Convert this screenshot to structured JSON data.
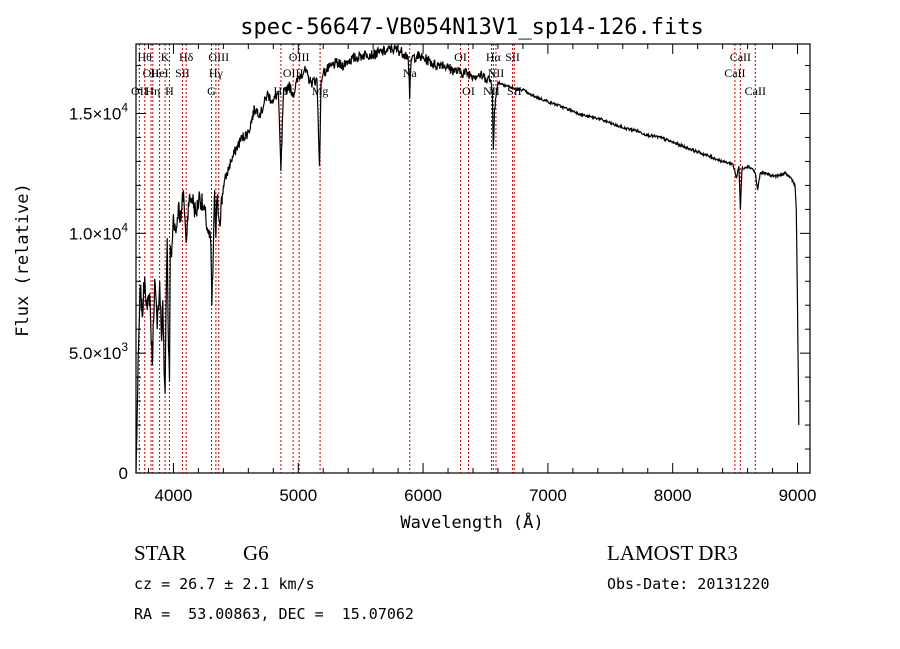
{
  "chart_data": {
    "type": "line",
    "title": "spec-56647-VB054N13V1_sp14-126.fits",
    "xlabel": "Wavelength (Å)",
    "ylabel": "Flux (relative)",
    "xlim": [
      3700,
      9100
    ],
    "ylim": [
      0,
      17900
    ],
    "x_ticks": [
      4000,
      5000,
      6000,
      7000,
      8000,
      9000
    ],
    "x_tick_labels": [
      "4000",
      "5000",
      "6000",
      "7000",
      "8000",
      "9000"
    ],
    "y_ticks": [
      0,
      5000,
      10000,
      15000
    ],
    "y_tick_labels": [
      {
        "mant": "0",
        "exp": ""
      },
      {
        "mant": "5.0×10",
        "exp": "3"
      },
      {
        "mant": "1.0×10",
        "exp": "4"
      },
      {
        "mant": "1.5×10",
        "exp": "4"
      }
    ],
    "series": [
      {
        "name": "spectrum",
        "x": [
          3700,
          3710,
          3720,
          3735,
          3750,
          3770,
          3790,
          3810,
          3830,
          3850,
          3870,
          3890,
          3905,
          3915,
          3925,
          3933,
          3940,
          3950,
          3960,
          3968,
          3975,
          3985,
          4000,
          4020,
          4040,
          4060,
          4080,
          4101,
          4120,
          4150,
          4180,
          4210,
          4240,
          4260,
          4280,
          4300,
          4308,
          4315,
          4330,
          4340,
          4350,
          4370,
          4400,
          4430,
          4460,
          4500,
          4550,
          4600,
          4650,
          4700,
          4750,
          4800,
          4840,
          4861,
          4880,
          4920,
          4960,
          5000,
          5050,
          5100,
          5150,
          5170,
          5184,
          5200,
          5250,
          5300,
          5350,
          5400,
          5450,
          5500,
          5550,
          5600,
          5650,
          5700,
          5750,
          5800,
          5850,
          5880,
          5893,
          5905,
          5950,
          6000,
          6050,
          6100,
          6150,
          6200,
          6250,
          6300,
          6350,
          6400,
          6450,
          6500,
          6540,
          6555,
          6563,
          6572,
          6600,
          6650,
          6700,
          6750,
          6800,
          6850,
          6900,
          6950,
          7000,
          7100,
          7200,
          7300,
          7400,
          7500,
          7600,
          7700,
          7800,
          7900,
          8000,
          8100,
          8200,
          8300,
          8400,
          8480,
          8498,
          8510,
          8530,
          8542,
          8555,
          8600,
          8640,
          8662,
          8680,
          8700,
          8750,
          8800,
          8850,
          8900,
          8950,
          8980,
          8990,
          9000,
          9010
        ],
        "values": [
          0,
          2500,
          5200,
          7800,
          6500,
          8200,
          6800,
          7500,
          4500,
          8100,
          6000,
          8000,
          5500,
          7200,
          4200,
          3300,
          6800,
          9800,
          5200,
          3800,
          9500,
          9000,
          10800,
          10000,
          11200,
          10500,
          11800,
          9600,
          11300,
          11500,
          10800,
          11600,
          11000,
          10600,
          10000,
          9500,
          7000,
          8200,
          11800,
          9800,
          11500,
          10500,
          12000,
          12500,
          13000,
          13500,
          14000,
          14200,
          15200,
          15000,
          15800,
          15500,
          15900,
          12600,
          15700,
          16200,
          15800,
          16500,
          16800,
          16300,
          16400,
          12800,
          16400,
          16700,
          16900,
          17100,
          17000,
          17200,
          17300,
          17400,
          17500,
          17450,
          17550,
          17600,
          17700,
          17650,
          17500,
          17400,
          15600,
          17300,
          17400,
          17300,
          17200,
          17000,
          17100,
          16900,
          16800,
          16700,
          16700,
          16600,
          16600,
          16500,
          16400,
          16000,
          13500,
          15200,
          16300,
          16200,
          16100,
          16000,
          16000,
          15800,
          15700,
          15600,
          15500,
          15300,
          15100,
          14900,
          14800,
          14600,
          14400,
          14300,
          14100,
          14000,
          13800,
          13600,
          13400,
          13200,
          13000,
          12900,
          12600,
          12300,
          12800,
          11000,
          12700,
          12800,
          12700,
          12500,
          11800,
          12500,
          12500,
          12400,
          12400,
          12500,
          12300,
          12000,
          11000,
          7000,
          2000
        ]
      }
    ],
    "spectral_lines": [
      {
        "wave": 3727,
        "label": "OII",
        "row": 3
      },
      {
        "wave": 3770,
        "label": "Hθ",
        "row": 1
      },
      {
        "wave": 3820,
        "label": "OII",
        "row": 2
      },
      {
        "wave": 3835,
        "label": "Hη",
        "row": 3
      },
      {
        "wave": 3889,
        "label": "HeI",
        "row": 2
      },
      {
        "wave": 3933,
        "label": "K",
        "row": 1
      },
      {
        "wave": 3968,
        "label": "H",
        "row": 3
      },
      {
        "wave": 4072,
        "label": "SII",
        "row": 2
      },
      {
        "wave": 4102,
        "label": "Hδ",
        "row": 1
      },
      {
        "wave": 4305,
        "label": "G",
        "row": 3
      },
      {
        "wave": 4340,
        "label": "Hγ",
        "row": 2
      },
      {
        "wave": 4363,
        "label": "OIII",
        "row": 1
      },
      {
        "wave": 4861,
        "label": "Hβ",
        "row": 3
      },
      {
        "wave": 4959,
        "label": "OIII",
        "row": 2
      },
      {
        "wave": 5007,
        "label": "OIII",
        "row": 1
      },
      {
        "wave": 5175,
        "label": "Mg",
        "row": 3
      },
      {
        "wave": 5893,
        "label": "Na",
        "row": 2
      },
      {
        "wave": 6300,
        "label": "OI",
        "row": 1
      },
      {
        "wave": 6364,
        "label": "OI",
        "row": 3
      },
      {
        "wave": 6548,
        "label": "NII",
        "row": 3
      },
      {
        "wave": 6563,
        "label": "Hα",
        "row": 1
      },
      {
        "wave": 6584,
        "label": "NII",
        "row": 2
      },
      {
        "wave": 6717,
        "label": "SII",
        "row": 1
      },
      {
        "wave": 6731,
        "label": "SII",
        "row": 3
      },
      {
        "wave": 8498,
        "label": "CaII",
        "row": 2
      },
      {
        "wave": 8542,
        "label": "CaII",
        "row": 1
      },
      {
        "wave": 8662,
        "label": "CaII",
        "row": 3
      }
    ],
    "line_color": "#000000",
    "marker_color": "#cc0000"
  },
  "info": {
    "object_class": "STAR",
    "subclass": "G6",
    "cz": "cz = 26.7 ± 2.1 km/s",
    "coords": "RA =  53.00863, DEC =  15.07062",
    "survey": "LAMOST DR3",
    "obs_date": "Obs-Date: 20131220"
  }
}
